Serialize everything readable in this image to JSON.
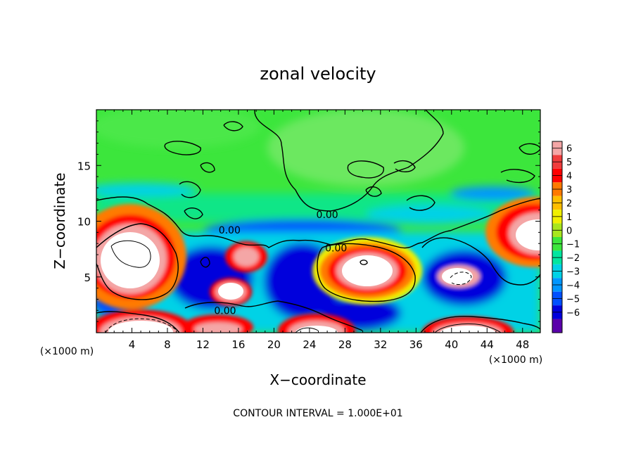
{
  "chart_data": {
    "type": "heatmap",
    "title": "zonal velocity",
    "xlabel": "X−coordinate",
    "ylabel": "Z−coordinate",
    "x_unit_left": "(×1000 m)",
    "x_unit_right": "(×1000 m)",
    "xlim": [
      0,
      50
    ],
    "ylim": [
      0,
      20
    ],
    "xticks": [
      4,
      8,
      12,
      16,
      20,
      24,
      28,
      32,
      36,
      40,
      44,
      48
    ],
    "yticks": [
      5,
      10,
      15
    ],
    "colorbar": {
      "ticks": [
        "6",
        "5",
        "4",
        "3",
        "2",
        "1",
        "0",
        "−1",
        "−2",
        "−3",
        "−4",
        "−5",
        "−6"
      ],
      "colors": [
        "#f4a6a6",
        "#f03c3c",
        "#ff0000",
        "#ff7a00",
        "#ffbe00",
        "#f0f000",
        "#a8e61e",
        "#3ce63c",
        "#00e6a0",
        "#00d2e6",
        "#0096ff",
        "#0050ff",
        "#0000dc",
        "#5a00aa"
      ]
    },
    "contour_labels": [
      {
        "text": "0.00",
        "x": 26,
        "z": 10.6
      },
      {
        "text": "0.00",
        "x": 15,
        "z": 9.2
      },
      {
        "text": "0.00",
        "x": 27,
        "z": 7.6
      },
      {
        "text": "0.00",
        "x": 14.5,
        "z": 2.0
      }
    ],
    "footer": "CONTOUR INTERVAL =  1.000E+01"
  }
}
